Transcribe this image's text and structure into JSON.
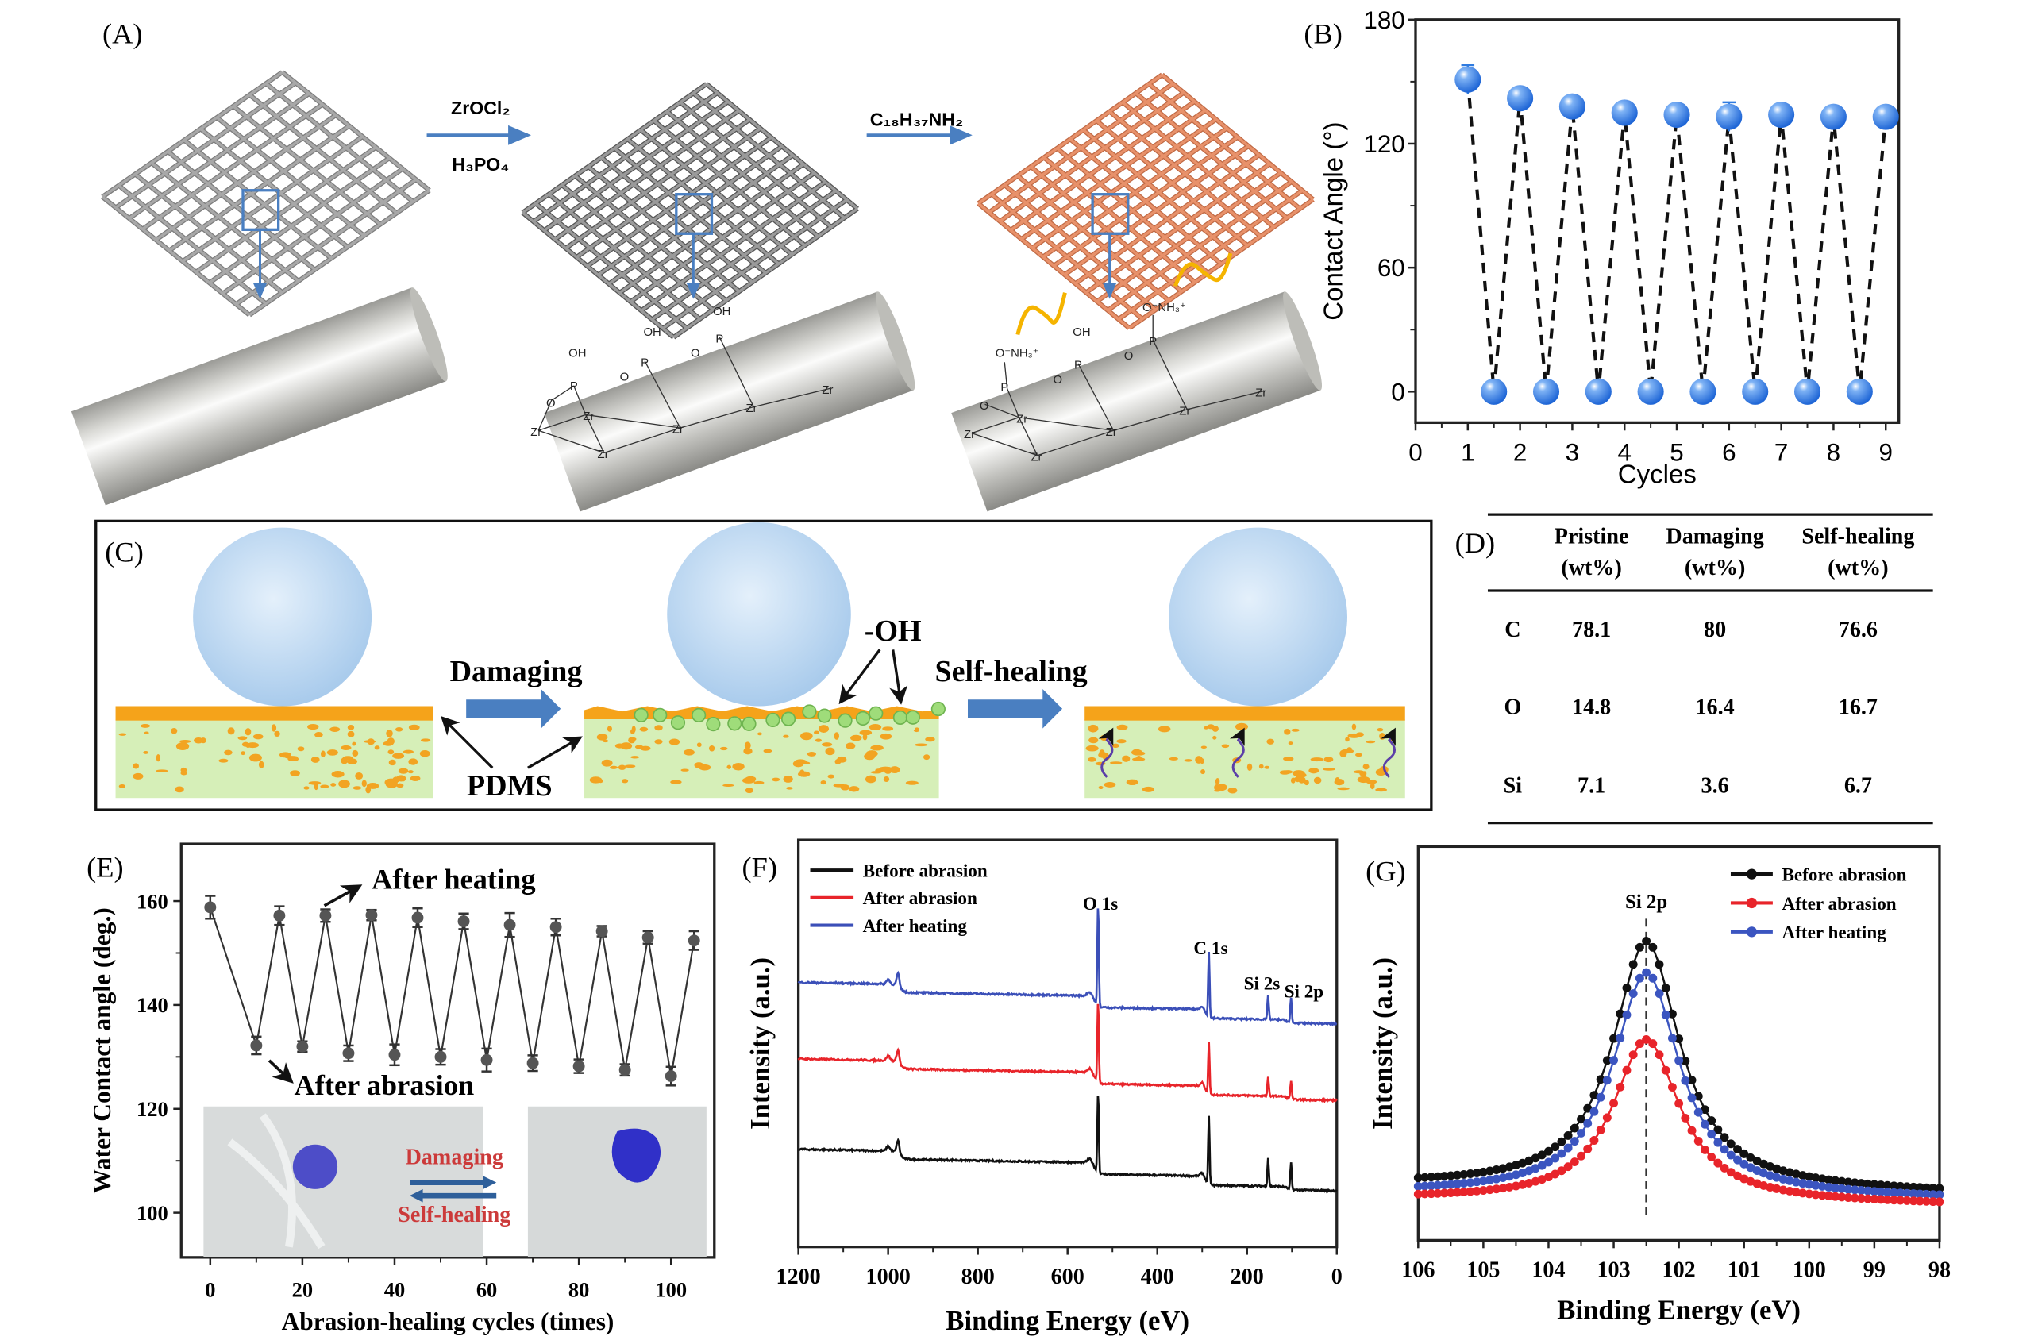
{
  "panel_labels": {
    "a": "(A)",
    "b": "(B)",
    "c": "(C)",
    "d": "(D)",
    "e": "(E)",
    "f": "(F)",
    "g": "(G)"
  },
  "panel_a": {
    "step1_reagent_top": "ZrOCl₂",
    "step1_reagent_bottom": "H₃PO₄",
    "step2_reagent": "C₁₈H₃₇NH₂",
    "chem": {
      "oh": "OH",
      "p": "P",
      "o": "O",
      "zr": "Zr",
      "onh3": "O⁻NH₃⁺"
    },
    "colors": {
      "mesh": "#a8a8a8",
      "coated_mesh": "#e8916a",
      "arrow": "#4a7fc1",
      "alkyl_chain": "#f5b400"
    }
  },
  "panel_c": {
    "damaging": "Damaging",
    "self_healing": "Self-healing",
    "oh": "-OH",
    "pdms": "PDMS",
    "colors": {
      "droplet": "#bcd8f2",
      "top_layer": "#f5a31a",
      "substrate": "#d6efb8",
      "oh_group": "#9fdc7a",
      "arrow": "#4a7fc1",
      "healing_chain": "#5b3fa8"
    }
  },
  "chart_data": [
    {
      "id": "B",
      "type": "scatter",
      "xlabel": "Cycles",
      "ylabel": "Contact Angle (°)",
      "xlim": [
        0,
        9.25
      ],
      "ylim": [
        -15,
        180
      ],
      "xticks": [
        0,
        1,
        2,
        3,
        4,
        5,
        6,
        7,
        8,
        9
      ],
      "yticks": [
        0,
        60,
        120,
        180
      ],
      "grid": false,
      "line_style": "dashed",
      "marker_color": "#2f7be0",
      "x": [
        1,
        1.5,
        2,
        2.5,
        3,
        3.5,
        4,
        4.5,
        5,
        5.5,
        6,
        6.5,
        7,
        7.5,
        8,
        8.5,
        9
      ],
      "y": [
        151,
        0,
        142,
        0,
        138,
        0,
        135,
        0,
        134,
        0,
        133,
        0,
        134,
        0,
        133,
        0,
        133
      ],
      "error": [
        7,
        0,
        5,
        0,
        5,
        0,
        4,
        0,
        5,
        0,
        7,
        0,
        4,
        0,
        3,
        0,
        4
      ]
    },
    {
      "id": "E",
      "type": "line",
      "xlabel": "Abrasion-healing cycles (times)",
      "ylabel": "Water Contact angle (deg.)",
      "xlim": [
        -6.3,
        109.4
      ],
      "ylim": [
        91.4,
        171
      ],
      "xticks": [
        0,
        20,
        40,
        60,
        80,
        100
      ],
      "yticks": [
        100,
        120,
        140,
        160
      ],
      "grid": false,
      "x": [
        0,
        10,
        15,
        20,
        25,
        30,
        35,
        40,
        45,
        50,
        55,
        60,
        65,
        70,
        75,
        80,
        85,
        90,
        95,
        100,
        105
      ],
      "y": [
        158.8,
        132.2,
        157.2,
        132.0,
        157.2,
        130.7,
        157.3,
        130.4,
        156.8,
        130.0,
        156.1,
        129.4,
        155.4,
        128.8,
        155.0,
        128.2,
        154.2,
        127.5,
        153.0,
        126.3,
        152.4
      ],
      "error": [
        2.2,
        1.7,
        1.8,
        1.0,
        1.2,
        1.5,
        1.0,
        2.0,
        1.8,
        1.5,
        1.5,
        2.2,
        2.3,
        1.5,
        1.6,
        1.3,
        1.0,
        1.1,
        1.2,
        1.8,
        1.8
      ],
      "annotations": {
        "after_heating": "After heating",
        "after_abrasion": "After abrasion"
      },
      "inset": {
        "damaging": "Damaging",
        "self_healing": "Self-healing",
        "label_color": "#cc3a3a",
        "arrow_color": "#2e5f9a",
        "droplet_color": "#4d4dc8"
      }
    },
    {
      "id": "F",
      "type": "line",
      "xlabel": "Binding Energy (eV)",
      "ylabel": "Intensity (a.u.)",
      "xlim": [
        1200,
        0
      ],
      "ylim": [
        0,
        1
      ],
      "xticks": [
        1200,
        1000,
        800,
        600,
        400,
        200,
        0
      ],
      "grid": false,
      "legend": "top-left",
      "peaks": [
        {
          "label": "O 1s",
          "be": 532
        },
        {
          "label": "C 1s",
          "be": 285
        },
        {
          "label": "Si 2s",
          "be": 153
        },
        {
          "label": "Si 2p",
          "be": 102
        }
      ],
      "series": [
        {
          "name": "Before abrasion",
          "color": "#111111",
          "baseline": 0.138,
          "peak_heights": [
            0.2,
            0.165,
            0.07,
            0.065
          ]
        },
        {
          "name": "After abrasion",
          "color": "#e8242a",
          "baseline": 0.36,
          "peak_heights": [
            0.2,
            0.125,
            0.045,
            0.045
          ]
        },
        {
          "name": "After heating",
          "color": "#3b4fb8",
          "baseline": 0.548,
          "peak_heights": [
            0.25,
            0.16,
            0.06,
            0.06
          ]
        }
      ]
    },
    {
      "id": "G",
      "type": "line",
      "xlabel": "Binding Energy (eV)",
      "ylabel": "Intensity (a.u.)",
      "xlim": [
        106,
        98
      ],
      "ylim": [
        0,
        1
      ],
      "xticks": [
        106,
        105,
        104,
        103,
        102,
        101,
        100,
        99,
        98
      ],
      "grid": false,
      "legend": "top-right",
      "peak_label": "Si 2p",
      "peak_center": 102.5,
      "series": [
        {
          "name": "Before abrasion",
          "color": "#111111",
          "peak": 0.76,
          "baseline_left": 0.14,
          "baseline_right": 0.12
        },
        {
          "name": "After abrasion",
          "color": "#e8242a",
          "peak": 0.51,
          "baseline_left": 0.105,
          "baseline_right": 0.09
        },
        {
          "name": "After heating",
          "color": "#3b55c0",
          "peak": 0.68,
          "baseline_left": 0.12,
          "baseline_right": 0.105
        }
      ]
    },
    {
      "id": "D",
      "type": "table",
      "columns": [
        {
          "line1": "Pristine",
          "line2": "(wt%)"
        },
        {
          "line1": "Damaging",
          "line2": "(wt%)"
        },
        {
          "line1": "Self-healing",
          "line2": "(wt%)"
        }
      ],
      "rows": [
        {
          "element": "C",
          "values": [
            "78.1",
            "80",
            "76.6"
          ]
        },
        {
          "element": "O",
          "values": [
            "14.8",
            "16.4",
            "16.7"
          ]
        },
        {
          "element": "Si",
          "values": [
            "7.1",
            "3.6",
            "6.7"
          ]
        }
      ]
    }
  ]
}
